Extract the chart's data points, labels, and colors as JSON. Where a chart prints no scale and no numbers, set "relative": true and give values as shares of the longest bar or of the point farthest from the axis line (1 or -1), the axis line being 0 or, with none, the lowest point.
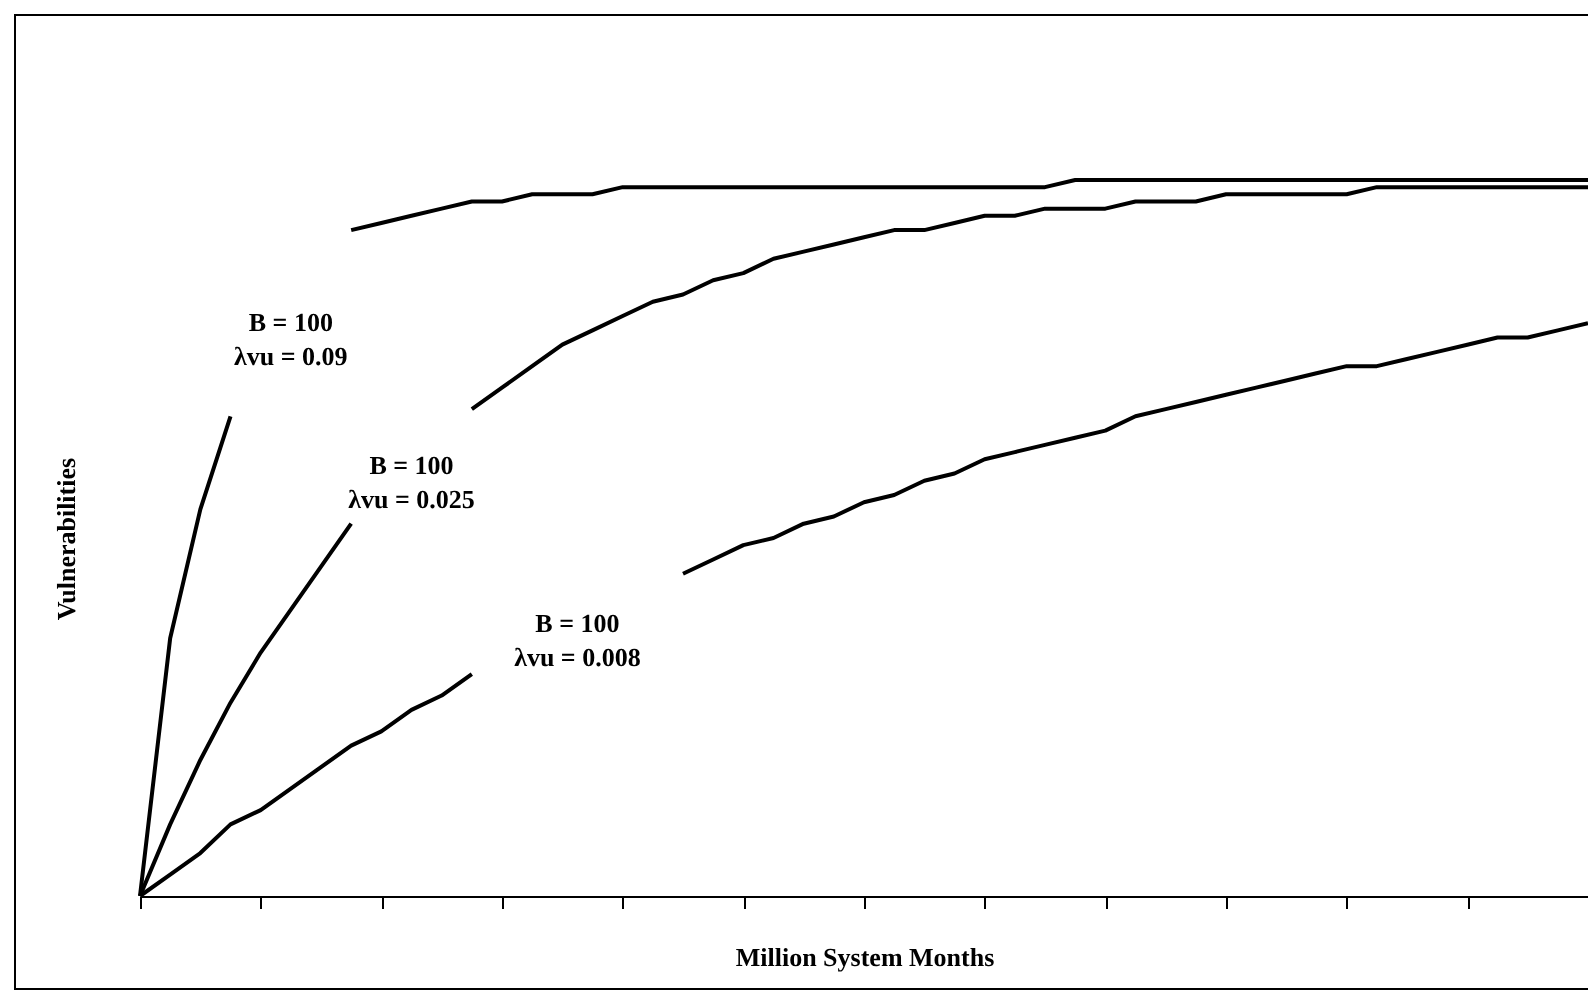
{
  "chart_data": {
    "type": "line",
    "relative": true,
    "xlabel": "Million System Months",
    "ylabel": "Vulnerabilities",
    "legend": false,
    "grid": false,
    "tick_labels": false,
    "categories": [
      null,
      null,
      null,
      null,
      null,
      null,
      null,
      null,
      null,
      null,
      null,
      null,
      null,
      null,
      null,
      null,
      null,
      null,
      null,
      null,
      null,
      null,
      null,
      null,
      null,
      null,
      null,
      null,
      null,
      null,
      null,
      null,
      null,
      null,
      null,
      null,
      null,
      null,
      null,
      null,
      null,
      null,
      null,
      null,
      null,
      null,
      null,
      null,
      null
    ],
    "series": [
      {
        "name": "B = 100\nλvu = 0.09",
        "color": "#000000",
        "values": [
          0,
          0.36,
          0.54,
          0.67,
          null,
          null,
          null,
          0.93,
          0.94,
          0.95,
          0.96,
          0.97,
          0.97,
          0.98,
          0.98,
          0.98,
          0.99,
          0.99,
          0.99,
          0.99,
          0.99,
          0.99,
          0.99,
          0.99,
          0.99,
          0.99,
          0.99,
          0.99,
          0.99,
          0.99,
          0.99,
          1,
          1,
          1,
          1,
          1,
          1,
          1,
          1,
          1,
          1,
          1,
          1,
          1,
          1,
          1,
          1,
          1,
          1
        ]
      },
      {
        "name": "B = 100\nλvu = 0.025",
        "color": "#000000",
        "values": [
          0,
          0.1,
          0.19,
          0.27,
          0.34,
          0.4,
          0.46,
          0.52,
          null,
          null,
          null,
          0.68,
          0.71,
          0.74,
          0.77,
          0.79,
          0.81,
          0.83,
          0.84,
          0.86,
          0.87,
          0.89,
          0.9,
          0.91,
          0.92,
          0.93,
          0.93,
          0.94,
          0.95,
          0.95,
          0.96,
          0.96,
          0.96,
          0.97,
          0.97,
          0.97,
          0.98,
          0.98,
          0.98,
          0.98,
          0.98,
          0.99,
          0.99,
          0.99,
          0.99,
          0.99,
          0.99,
          0.99,
          0.99
        ]
      },
      {
        "name": "B = 100\nλvu = 0.008",
        "color": "#000000",
        "values": [
          0,
          0.03,
          0.06,
          0.1,
          0.12,
          0.15,
          0.18,
          0.21,
          0.23,
          0.26,
          0.28,
          0.31,
          null,
          null,
          null,
          null,
          null,
          null,
          0.45,
          0.47,
          0.49,
          0.5,
          0.52,
          0.53,
          0.55,
          0.56,
          0.58,
          0.59,
          0.61,
          0.62,
          0.63,
          0.64,
          0.65,
          0.67,
          0.68,
          0.69,
          0.7,
          0.71,
          0.72,
          0.73,
          0.74,
          0.74,
          0.75,
          0.76,
          0.77,
          0.78,
          0.78,
          0.79,
          0.8
        ]
      }
    ]
  }
}
